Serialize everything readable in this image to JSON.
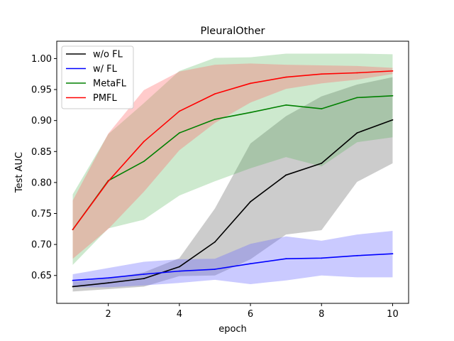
{
  "chart_data": {
    "type": "line",
    "title": "PleuralOther",
    "xlabel": "epoch",
    "ylabel": "Test AUC",
    "xlim": [
      0.55,
      10.45
    ],
    "ylim": [
      0.605,
      1.028
    ],
    "xticks": [
      "2",
      "4",
      "6",
      "8",
      "10"
    ],
    "xtick_values": [
      2,
      4,
      6,
      8,
      10
    ],
    "yticks": [
      "0.65",
      "0.70",
      "0.75",
      "0.80",
      "0.85",
      "0.90",
      "0.95",
      "1.00"
    ],
    "ytick_values": [
      0.65,
      0.7,
      0.75,
      0.8,
      0.85,
      0.9,
      0.95,
      1.0
    ],
    "grid": false,
    "legend_position": "upper-left",
    "x": [
      1,
      2,
      3,
      4,
      5,
      6,
      7,
      8,
      9,
      10
    ],
    "series": [
      {
        "name": "w/o FL",
        "color": "#000000",
        "band_fill": "#808080",
        "band_opacity": 0.4,
        "values": [
          0.632,
          0.638,
          0.645,
          0.664,
          0.704,
          0.769,
          0.812,
          0.831,
          0.88,
          0.901
        ],
        "lower": [
          0.624,
          0.628,
          0.632,
          0.649,
          0.65,
          0.676,
          0.716,
          0.723,
          0.801,
          0.831
        ],
        "upper": [
          0.64,
          0.645,
          0.655,
          0.678,
          0.758,
          0.863,
          0.907,
          0.939,
          0.958,
          0.97
        ]
      },
      {
        "name": "w/ FL",
        "color": "#0000ff",
        "band_fill": "#6666ff",
        "band_opacity": 0.35,
        "values": [
          0.642,
          0.646,
          0.652,
          0.657,
          0.66,
          0.669,
          0.677,
          0.678,
          0.682,
          0.685
        ],
        "lower": [
          0.631,
          0.631,
          0.634,
          0.638,
          0.643,
          0.636,
          0.642,
          0.65,
          0.647,
          0.647
        ],
        "upper": [
          0.652,
          0.662,
          0.672,
          0.676,
          0.677,
          0.701,
          0.713,
          0.706,
          0.716,
          0.722
        ]
      },
      {
        "name": "MetaFL",
        "color": "#008000",
        "band_fill": "#4caf50",
        "band_opacity": 0.28,
        "values": [
          0.724,
          0.803,
          0.834,
          0.88,
          0.902,
          0.913,
          0.925,
          0.919,
          0.937,
          0.94
        ],
        "lower": [
          0.667,
          0.726,
          0.74,
          0.779,
          0.802,
          0.823,
          0.841,
          0.826,
          0.865,
          0.873
        ],
        "upper": [
          0.781,
          0.878,
          0.928,
          0.98,
          1.001,
          1.002,
          1.008,
          1.008,
          1.008,
          1.007
        ]
      },
      {
        "name": "PMFL",
        "color": "#ff0000",
        "band_fill": "#ff6b6b",
        "band_opacity": 0.35,
        "values": [
          0.724,
          0.802,
          0.866,
          0.915,
          0.943,
          0.96,
          0.97,
          0.975,
          0.977,
          0.98
        ],
        "lower": [
          0.677,
          0.725,
          0.785,
          0.852,
          0.896,
          0.929,
          0.951,
          0.96,
          0.966,
          0.975
        ],
        "upper": [
          0.771,
          0.879,
          0.949,
          0.979,
          0.99,
          0.992,
          0.99,
          0.989,
          0.988,
          0.985
        ]
      }
    ]
  }
}
